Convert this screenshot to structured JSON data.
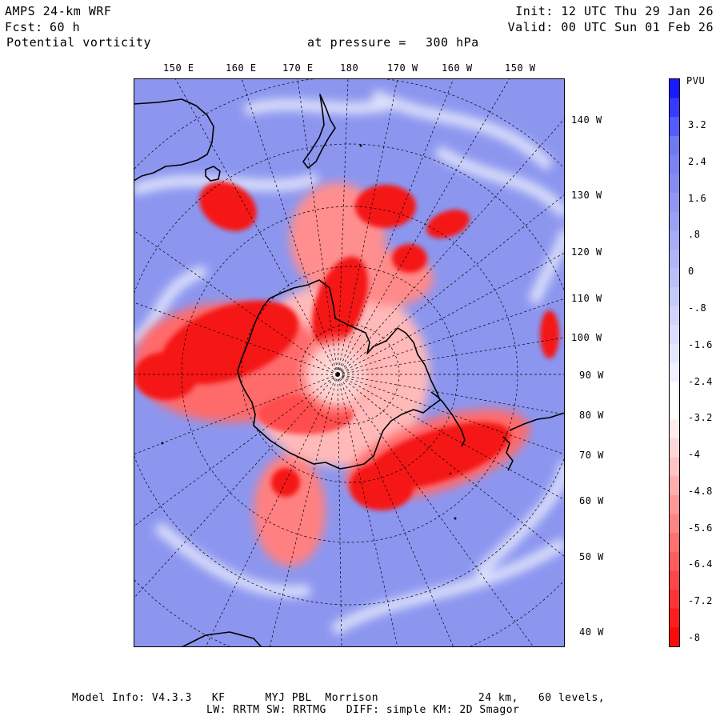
{
  "header": {
    "model": "AMPS 24-km WRF",
    "fcst_label": "Fcst:",
    "fcst_value": "60 h",
    "field": "Potential vorticity",
    "level_label": "at pressure =",
    "level_value": "300 hPa",
    "init": "Init: 12 UTC Thu 29 Jan 26",
    "valid": "Valid: 00 UTC Sun 01 Feb 26"
  },
  "map": {
    "top_lon_labels": [
      "150 E",
      "160 E",
      "170 E",
      "180",
      "170 W",
      "160 W",
      "150 W"
    ],
    "right_lon_labels": [
      "140 W",
      "130 W",
      "120 W",
      "110 W",
      "100 W",
      "90 W",
      "80 W",
      "70 W",
      "60 W",
      "50 W",
      "40 W"
    ]
  },
  "colorbar": {
    "unit": "PVU",
    "ticks": [
      "3.2",
      "2.4",
      "1.6",
      ".8",
      "0",
      "-.8",
      "-1.6",
      "-2.4",
      "-3.2",
      "-4",
      "-4.8",
      "-5.6",
      "-6.4",
      "-7.2",
      "-8"
    ],
    "min": -8,
    "max": 4,
    "colors": {
      "high": "#1a1aff",
      "mid_positive": "#8c96ef",
      "zero": "#ffffff",
      "negative": "#ff1010"
    }
  },
  "footer": {
    "line1": "Model Info: V4.3.3   KF      MYJ PBL  Morrison               24 km,   60 levels,",
    "line2": "LW: RRTM SW: RRTMG   DIFF: simple KM: 2D Smagor"
  }
}
